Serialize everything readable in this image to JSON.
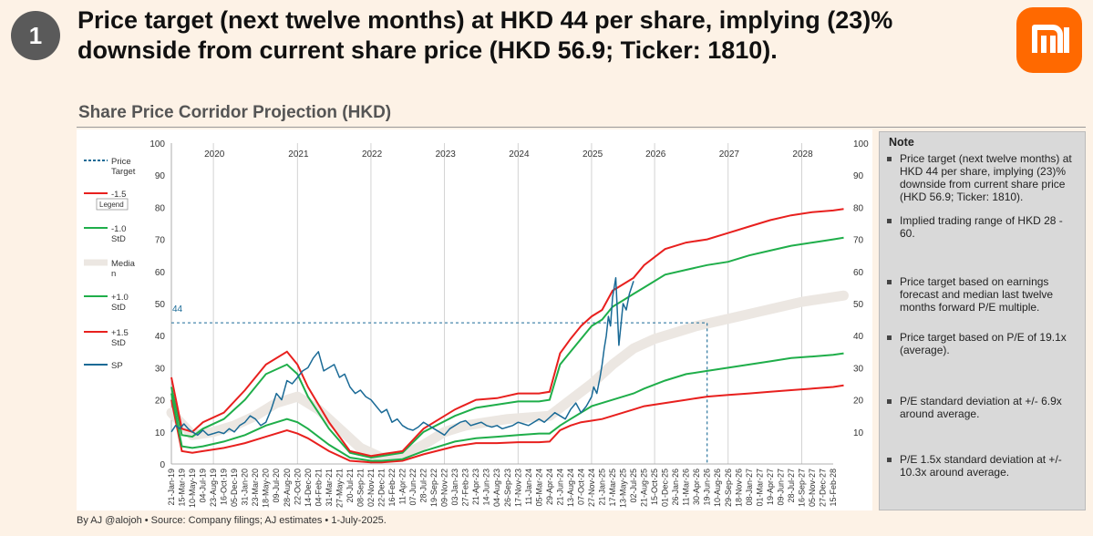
{
  "badge": "1",
  "headline_line1": "Price target (next twelve months) at HKD 44 per share, implying (23)%",
  "headline_line2": "downside from current share price (HKD 56.9; Ticker: 1810).",
  "subtitle": "Share Price Corridor Projection (HKD)",
  "logo_text": "mi",
  "footer": "By AJ @alojoh • Source: Company filings; AJ estimates • 1-July-2025.",
  "note": {
    "title": "Note",
    "items": [
      "Price target (next twelve months) at HKD 44 per share, implying (23)% downside from current share price (HKD 56.9; Ticker: 1810).",
      "Implied trading range of HKD 28 - 60.",
      "Price target based on earnings forecast and median last twelve months forward P/E multiple.",
      "Price target based on P/E of 19.1x (average).",
      "P/E standard deviation at +/- 6.9x around average.",
      "P/E 1.5x standard deviation at +/- 10.3x around average."
    ]
  },
  "colors": {
    "red": "#e8201e",
    "green": "#1fae4a",
    "sp": "#1a6a96",
    "median": "#ece7e2",
    "logo": "#ff6900"
  },
  "chart_data": {
    "type": "line",
    "ylim": [
      0,
      100
    ],
    "yticks": [
      0,
      10,
      20,
      30,
      40,
      50,
      60,
      70,
      80,
      90,
      100
    ],
    "right_yticks": [
      10,
      20,
      30,
      40,
      50,
      60,
      70,
      80,
      90,
      100
    ],
    "year_labels": [
      "2020",
      "2021",
      "2022",
      "2023",
      "2024",
      "2025",
      "2026",
      "2027",
      "2028"
    ],
    "x_labels": [
      "21-Jan-19",
      "15-Mar-19",
      "10-May-19",
      "04-Jul-19",
      "23-Aug-19",
      "16-Oct-19",
      "05-Dec-19",
      "31-Jan-20",
      "23-Mar-20",
      "18-May-20",
      "09-Jul-20",
      "28-Aug-20",
      "22-Oct-20",
      "14-Dec-20",
      "04-Feb-21",
      "31-Mar-21",
      "27-May-21",
      "20-Jul-21",
      "08-Sep-21",
      "02-Nov-21",
      "22-Dec-21",
      "16-Feb-22",
      "11-Apr-22",
      "07-Jun-22",
      "28-Jul-22",
      "19-Sep-22",
      "09-Nov-22",
      "03-Jan-23",
      "27-Feb-23",
      "21-Apr-23",
      "14-Jun-23",
      "04-Aug-23",
      "26-Sep-23",
      "17-Nov-23",
      "11-Jan-24",
      "05-Mar-24",
      "29-Apr-24",
      "21-Jun-24",
      "13-Aug-24",
      "07-Oct-24",
      "27-Nov-24",
      "21-Jan-25",
      "17-Mar-25",
      "13-May-25",
      "02-Jul-25",
      "21-Aug-25",
      "15-Oct-25",
      "01-Dec-25",
      "26-Jan-26",
      "11-Mar-26",
      "30-Apr-26",
      "19-Jun-26",
      "10-Aug-26",
      "29-Sep-26",
      "18-Nov-26",
      "08-Jan-27",
      "01-Mar-27",
      "19-Apr-27",
      "09-Jun-27",
      "28-Jul-27",
      "16-Sep-27",
      "05-Nov-27",
      "27-Dec-27",
      "15-Feb-28"
    ],
    "price_target": 44,
    "price_target_label": "44",
    "legend": [
      {
        "label": "Price Target",
        "color": "#1a6a96",
        "dash": true
      },
      {
        "label": "-1.5",
        "color": "#e8201e"
      },
      {
        "label": "-1.0 StD",
        "color": "#1fae4a"
      },
      {
        "label": "Median",
        "color": "#ece7e2"
      },
      {
        "label": "+1.0 StD",
        "color": "#1fae4a"
      },
      {
        "label": "+1.5 StD",
        "color": "#e8201e"
      },
      {
        "label": "SP",
        "color": "#1a6a96"
      }
    ],
    "legend_tooltip": "Legend",
    "series": [
      {
        "name": "+1.5 StD",
        "x": [
          0,
          1,
          2,
          3,
          5,
          7,
          9,
          11,
          12,
          13,
          15,
          17,
          19,
          20,
          22,
          24,
          27,
          29,
          31,
          33,
          35,
          36,
          37,
          38,
          39,
          40,
          41,
          42,
          43,
          44,
          45,
          47,
          49,
          51,
          53,
          55,
          57,
          59,
          61,
          63,
          64
        ],
        "values": [
          27,
          11,
          10,
          13,
          16,
          23,
          31,
          35,
          31,
          24,
          13,
          4,
          2.5,
          3,
          4,
          11,
          17,
          20,
          20.5,
          22,
          22,
          22.5,
          34.5,
          39,
          43,
          46,
          48,
          54,
          56,
          58,
          62,
          67,
          69,
          70,
          72,
          74,
          76,
          77.5,
          78.5,
          79,
          79.5
        ]
      },
      {
        "name": "+1.0 StD",
        "x": [
          0,
          1,
          2,
          3,
          5,
          7,
          9,
          11,
          12,
          13,
          15,
          17,
          19,
          20,
          22,
          24,
          27,
          29,
          31,
          33,
          35,
          36,
          37,
          38,
          39,
          40,
          41,
          42,
          43,
          44,
          45,
          47,
          49,
          51,
          53,
          55,
          57,
          59,
          61,
          63,
          64
        ],
        "values": [
          24,
          9,
          8.5,
          11,
          14,
          20,
          28,
          31,
          28,
          21,
          11,
          3.5,
          2,
          2.5,
          3.5,
          10,
          15,
          17.5,
          18.5,
          19.5,
          19.5,
          20,
          31,
          35,
          39,
          43,
          45,
          49,
          51,
          53,
          55,
          59,
          60.5,
          62,
          63,
          65,
          66.5,
          68,
          69,
          70,
          70.5
        ]
      },
      {
        "name": "-1.0 StD",
        "x": [
          0,
          1,
          2,
          3,
          5,
          7,
          9,
          11,
          12,
          13,
          15,
          17,
          19,
          20,
          22,
          24,
          27,
          29,
          31,
          33,
          35,
          36,
          37,
          38,
          39,
          40,
          41,
          42,
          43,
          44,
          45,
          47,
          49,
          51,
          53,
          55,
          57,
          59,
          61,
          63,
          64
        ],
        "values": [
          22,
          5.5,
          5,
          5.5,
          7,
          9,
          12,
          14,
          13,
          11,
          6,
          2,
          1,
          1,
          1.5,
          4,
          7,
          8,
          8.5,
          9,
          9.5,
          9.5,
          12,
          14,
          16,
          18,
          19,
          20,
          21,
          22,
          23.5,
          26,
          28,
          29,
          30,
          31,
          32,
          33,
          33.5,
          34,
          34.5
        ]
      },
      {
        "name": "-1.5",
        "x": [
          0,
          1,
          2,
          3,
          5,
          7,
          9,
          11,
          12,
          13,
          15,
          17,
          19,
          20,
          22,
          24,
          27,
          29,
          31,
          33,
          35,
          36,
          37,
          38,
          39,
          40,
          41,
          42,
          43,
          44,
          45,
          47,
          49,
          51,
          53,
          55,
          57,
          59,
          61,
          63,
          64
        ],
        "values": [
          20,
          4,
          3.5,
          4,
          5,
          6.5,
          8.5,
          10.5,
          9.5,
          8,
          4,
          1,
          0.5,
          0.5,
          1,
          3,
          5.5,
          6.5,
          6.5,
          6.8,
          6.8,
          7,
          10.5,
          12,
          13,
          13.5,
          14,
          15,
          16,
          17,
          18,
          19,
          20,
          21,
          21.5,
          22,
          22.5,
          23,
          23.5,
          24,
          24.5
        ]
      },
      {
        "name": "Median",
        "x": [
          0,
          2,
          4,
          6,
          8,
          10,
          12,
          14,
          16,
          18,
          20,
          22,
          24,
          26,
          28,
          30,
          32,
          34,
          36,
          38,
          40,
          42,
          44,
          46,
          48,
          50,
          52,
          54,
          56,
          58,
          60,
          62,
          64
        ],
        "values": [
          16,
          9,
          10,
          12,
          15,
          19,
          21,
          17,
          11,
          5,
          2,
          2.5,
          6,
          10,
          12,
          13,
          14,
          14.5,
          15,
          20,
          25,
          31,
          36,
          39,
          41,
          43,
          44.5,
          46,
          47.5,
          49,
          50.5,
          51.5,
          52.5
        ]
      },
      {
        "name": "SP",
        "x": [
          0,
          0.4,
          0.8,
          1.2,
          1.6,
          2,
          2.5,
          3,
          3.5,
          4,
          4.5,
          5,
          5.5,
          6,
          6.5,
          7,
          7.5,
          8,
          8.5,
          9,
          9.5,
          10,
          10.5,
          11,
          11.5,
          12,
          12.5,
          13,
          13.5,
          14,
          14.5,
          15,
          15.5,
          16,
          16.5,
          17,
          17.5,
          18,
          18.5,
          19,
          19.5,
          20,
          20.5,
          21,
          21.5,
          22,
          22.5,
          23,
          23.5,
          24,
          24.5,
          25,
          25.5,
          26,
          26.5,
          27,
          27.5,
          28,
          28.5,
          29,
          29.5,
          30,
          30.5,
          31,
          31.5,
          32,
          32.5,
          33,
          33.5,
          34,
          34.5,
          35,
          35.5,
          36,
          36.5,
          37,
          37.5,
          38,
          38.5,
          39,
          39.5,
          40,
          40.2,
          40.5,
          40.8,
          41,
          41.2,
          41.4,
          41.6,
          41.8,
          42,
          42.3,
          42.6,
          43,
          43.3,
          43.6,
          44
        ],
        "values": [
          10,
          12,
          11,
          12.5,
          11,
          10,
          9,
          10.5,
          9,
          9.5,
          10,
          9.5,
          11,
          10,
          12,
          13,
          15,
          14,
          12,
          13,
          17,
          22,
          20,
          26,
          25,
          27,
          29,
          30,
          33,
          35,
          29,
          30,
          31,
          27,
          28,
          24,
          22,
          23,
          21,
          20,
          18,
          16,
          17,
          13,
          14,
          12,
          11,
          10.5,
          11.5,
          13,
          12,
          11,
          10,
          9,
          11,
          12,
          13,
          13.5,
          12,
          12.5,
          13,
          12,
          11.5,
          12,
          11,
          11.5,
          12,
          13,
          12.5,
          12,
          13,
          14,
          13,
          14.5,
          16,
          15,
          14,
          17,
          19,
          16,
          18,
          21,
          24,
          22,
          27,
          31,
          36,
          40,
          46,
          43,
          52,
          58,
          37,
          50,
          48,
          53,
          57
        ]
      }
    ]
  }
}
